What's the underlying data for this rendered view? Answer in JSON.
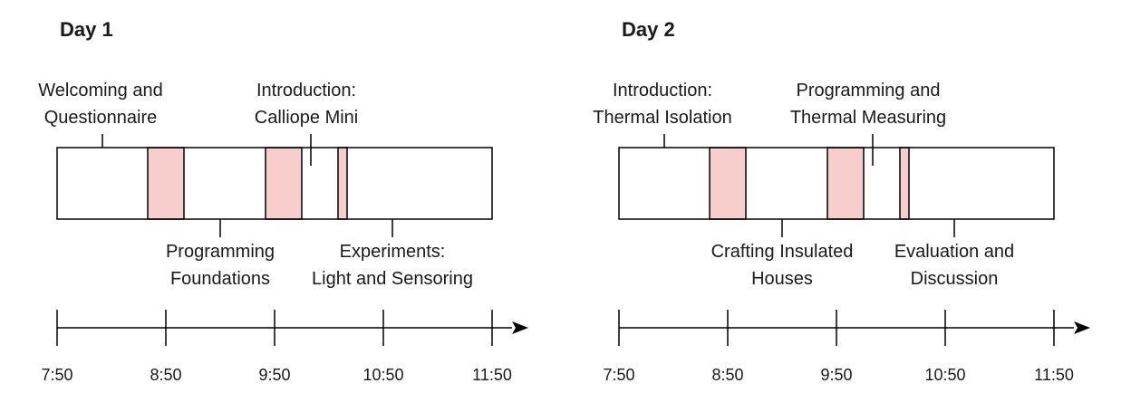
{
  "days": [
    {
      "title": "Day 1",
      "breaks": [
        {
          "start": "8:40",
          "end": "9:00"
        },
        {
          "start": "9:45",
          "end": "10:05"
        },
        {
          "start": "10:25",
          "end": "10:30"
        }
      ],
      "activities_top": [
        {
          "lines": [
            "Welcoming and",
            "Questionnaire"
          ],
          "at": "8:15"
        },
        {
          "lines": [
            "Introduction:",
            "Calliope Mini"
          ],
          "at": "10:10"
        }
      ],
      "activities_bottom": [
        {
          "lines": [
            "Programming",
            "Foundations"
          ],
          "at": "9:20"
        },
        {
          "lines": [
            "Experiments:",
            "Light and Sensoring"
          ],
          "at": "10:55"
        }
      ],
      "ticks": [
        "7:50",
        "8:50",
        "9:50",
        "10:50",
        "11:50"
      ]
    },
    {
      "title": "Day 2",
      "breaks": [
        {
          "start": "8:40",
          "end": "9:00"
        },
        {
          "start": "9:45",
          "end": "10:05"
        },
        {
          "start": "10:25",
          "end": "10:30"
        }
      ],
      "activities_top": [
        {
          "lines": [
            "Introduction:",
            "Thermal Isolation"
          ],
          "at": "8:15"
        },
        {
          "lines": [
            "Programming and",
            "Thermal Measuring"
          ],
          "at": "10:10"
        }
      ],
      "activities_bottom": [
        {
          "lines": [
            "Crafting Insulated",
            "Houses"
          ],
          "at": "9:20"
        },
        {
          "lines": [
            "Evaluation and",
            "Discussion"
          ],
          "at": "10:55"
        }
      ],
      "ticks": [
        "7:50",
        "8:50",
        "9:50",
        "10:50",
        "11:50"
      ]
    }
  ],
  "colors": {
    "break_fill": "#f8cecc",
    "stroke": "#000000"
  }
}
